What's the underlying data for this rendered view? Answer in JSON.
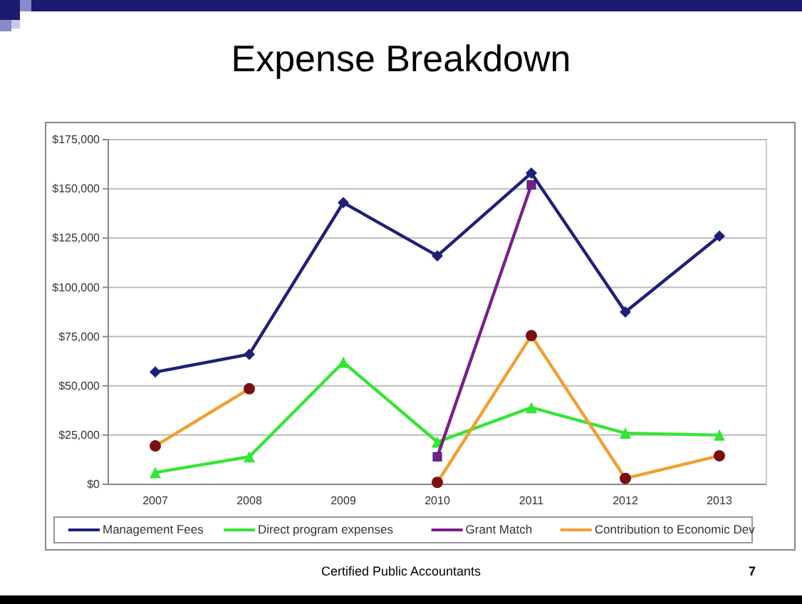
{
  "chart_data": {
    "type": "line",
    "title": "Expense Breakdown",
    "categories": [
      "2007",
      "2008",
      "2009",
      "2010",
      "2011",
      "2012",
      "2013"
    ],
    "series": [
      {
        "name": "Management Fees",
        "color": "#1f1f7a",
        "marker": "diamond",
        "values": [
          57000,
          66000,
          143000,
          116000,
          158000,
          87500,
          126000
        ]
      },
      {
        "name": "Direct program expenses",
        "color": "#33e633",
        "marker": "triangle",
        "values": [
          6000,
          14000,
          62000,
          21500,
          39000,
          26000,
          25000
        ]
      },
      {
        "name": "Grant Match",
        "color": "#7a1f8c",
        "marker": "square",
        "values": [
          null,
          null,
          null,
          14000,
          152000,
          null,
          null
        ]
      },
      {
        "name": "Contribution to Economic Dev",
        "color": "#f0a030",
        "marker": "circle",
        "values": [
          19500,
          48500,
          null,
          1000,
          75500,
          3000,
          14500
        ]
      }
    ],
    "ylim": [
      0,
      175000
    ],
    "yticks": [
      {
        "value": 0,
        "label": "$0"
      },
      {
        "value": 25000,
        "label": "$25,000"
      },
      {
        "value": 50000,
        "label": "$50,000"
      },
      {
        "value": 75000,
        "label": "$75,000"
      },
      {
        "value": 100000,
        "label": "$100,000"
      },
      {
        "value": 125000,
        "label": "$125,000"
      },
      {
        "value": 150000,
        "label": "$150,000"
      },
      {
        "value": 175000,
        "label": "$175,000"
      }
    ],
    "grid": "y",
    "legend": "bottom",
    "line_style": "solid",
    "annotations": [
      "Certified Public Accountants",
      "7"
    ]
  }
}
